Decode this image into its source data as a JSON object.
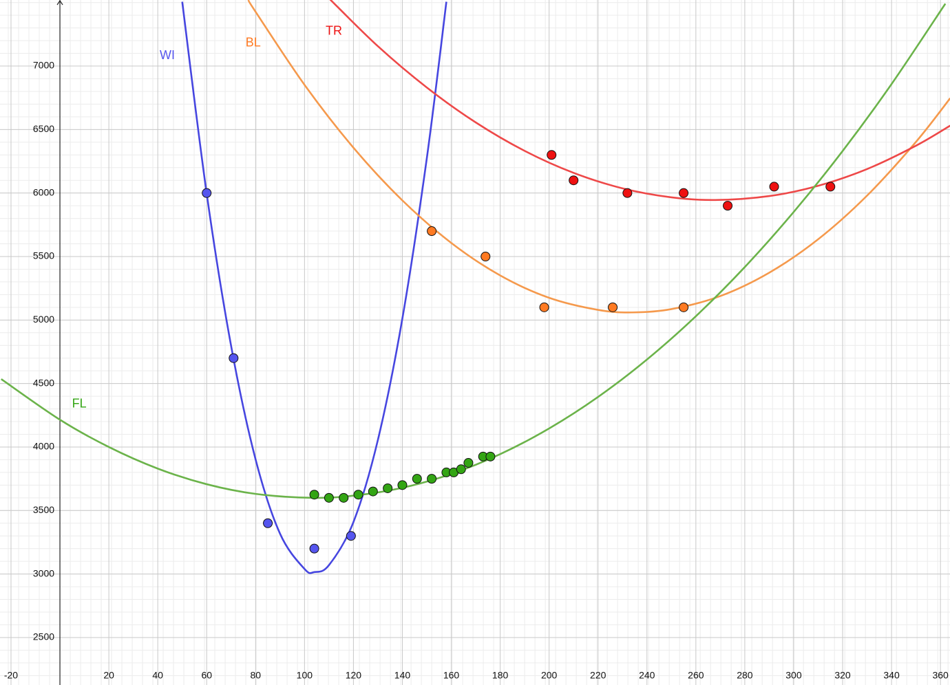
{
  "chart_data": {
    "type": "scatter",
    "xlim": [
      -24.5,
      363.9
    ],
    "ylim": [
      2126,
      7520
    ],
    "xticks": [
      -20,
      20,
      40,
      60,
      80,
      100,
      120,
      140,
      160,
      180,
      200,
      220,
      240,
      260,
      280,
      300,
      320,
      340,
      360
    ],
    "yticks": [
      2500,
      3000,
      3500,
      4000,
      4500,
      5000,
      5500,
      6000,
      6500,
      7000
    ],
    "grid": true,
    "series": [
      {
        "name": "WI",
        "color": "#5555ee",
        "line_color": "#4646e0",
        "x": [
          60,
          71,
          85,
          104,
          119
        ],
        "values": [
          6000,
          4700,
          3400,
          3200,
          3300
        ],
        "fit": {
          "x": [
            50,
            60,
            70,
            80,
            90,
            100,
            104,
            110,
            120,
            130,
            140,
            150,
            158
          ],
          "values": [
            7506,
            5996,
            4795,
            3902,
            3317,
            3040,
            3015,
            3070,
            3409,
            4056,
            5011,
            6274,
            7506
          ]
        }
      },
      {
        "name": "BL",
        "color": "#ff7a22",
        "line_color": "#f5994c",
        "x": [
          152,
          174,
          198,
          226,
          255
        ],
        "values": [
          5700,
          5500,
          5100,
          5100,
          5100
        ],
        "fit": {
          "x": [
            77,
            80,
            100,
            120,
            140,
            160,
            180,
            200,
            220,
            234,
            250,
            270,
            290,
            310,
            330,
            350,
            364
          ],
          "values": [
            7520,
            7427,
            6852,
            6357,
            5942,
            5607,
            5351,
            5175,
            5080,
            5060,
            5086,
            5189,
            5373,
            5636,
            5980,
            6403,
            6747
          ]
        }
      },
      {
        "name": "TR",
        "color": "#ee1111",
        "line_color": "#ee4848",
        "x": [
          201,
          210,
          232,
          255,
          273,
          292,
          315
        ],
        "values": [
          6300,
          6100,
          6000,
          6000,
          5900,
          6050,
          6050
        ],
        "fit": {
          "x": [
            110,
            130,
            150,
            170,
            190,
            210,
            230,
            250,
            268,
            290,
            310,
            330,
            350,
            364
          ],
          "values": [
            7533,
            7156,
            6831,
            6556,
            6332,
            6159,
            6037,
            5966,
            5945,
            5976,
            6057,
            6189,
            6373,
            6531
          ]
        }
      },
      {
        "name": "FL",
        "color": "#33a514",
        "line_color": "#6bb34a",
        "x": [
          104,
          110,
          116,
          122,
          128,
          134,
          140,
          146,
          152,
          158,
          161,
          164,
          167,
          173,
          176
        ],
        "values": [
          3625,
          3600,
          3600,
          3625,
          3650,
          3675,
          3700,
          3750,
          3750,
          3800,
          3800,
          3825,
          3875,
          3925,
          3925
        ],
        "fit": {
          "x": [
            -24,
            0,
            20,
            40,
            60,
            80,
            103,
            120,
            140,
            160,
            180,
            200,
            220,
            240,
            260,
            280,
            300,
            320,
            340,
            362
          ],
          "values": [
            4535,
            4215,
            4000,
            3830,
            3707,
            3631,
            3600,
            3617,
            3679,
            3788,
            3944,
            4146,
            4394,
            4689,
            5030,
            5417,
            5851,
            6331,
            6858,
            7491
          ]
        }
      }
    ]
  }
}
